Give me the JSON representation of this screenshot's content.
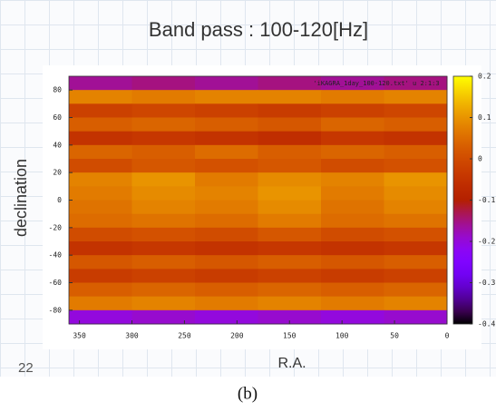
{
  "chart_data": {
    "type": "heatmap",
    "title": "Band pass : 100-120[Hz]",
    "xlabel": "R.A.",
    "ylabel": "declination",
    "key": "'iKAGRA_1day_100-120.txt' u 2:1:3",
    "x": [
      330,
      270,
      210,
      150,
      90,
      30
    ],
    "y": [
      85,
      75,
      65,
      55,
      45,
      35,
      25,
      15,
      5,
      -5,
      -15,
      -25,
      -35,
      -45,
      -55,
      -65,
      -75,
      -85
    ],
    "z": [
      [
        -0.16,
        -0.15,
        -0.16,
        -0.15,
        -0.16,
        -0.15
      ],
      [
        0.08,
        0.07,
        0.08,
        0.08,
        0.07,
        0.08
      ],
      [
        -0.02,
        -0.01,
        -0.02,
        -0.03,
        -0.02,
        -0.01
      ],
      [
        0.03,
        0.04,
        0.03,
        0.02,
        0.04,
        0.03
      ],
      [
        -0.05,
        -0.04,
        -0.05,
        -0.06,
        -0.04,
        -0.05
      ],
      [
        0.04,
        0.03,
        0.05,
        0.03,
        0.04,
        0.03
      ],
      [
        0.0,
        0.02,
        0.01,
        0.02,
        0.0,
        0.01
      ],
      [
        0.08,
        0.1,
        0.07,
        0.09,
        0.08,
        0.1
      ],
      [
        0.07,
        0.09,
        0.08,
        0.1,
        0.07,
        0.09
      ],
      [
        0.06,
        0.08,
        0.07,
        0.09,
        0.06,
        0.08
      ],
      [
        0.05,
        0.06,
        0.05,
        0.07,
        0.05,
        0.06
      ],
      [
        0.0,
        0.01,
        0.0,
        0.02,
        0.0,
        0.01
      ],
      [
        -0.05,
        -0.04,
        -0.05,
        -0.04,
        -0.05,
        -0.04
      ],
      [
        0.02,
        0.03,
        0.02,
        0.03,
        0.02,
        0.03
      ],
      [
        -0.03,
        -0.02,
        -0.03,
        -0.02,
        -0.03,
        -0.02
      ],
      [
        0.03,
        0.04,
        0.03,
        0.04,
        0.03,
        0.04
      ],
      [
        0.07,
        0.08,
        0.07,
        0.08,
        0.07,
        0.08
      ],
      [
        -0.2,
        -0.19,
        -0.2,
        -0.19,
        -0.2,
        -0.19
      ]
    ],
    "xlim": [
      360,
      0
    ],
    "ylim": [
      -90,
      90
    ],
    "xticks": [
      350,
      300,
      250,
      200,
      150,
      100,
      50,
      0
    ],
    "yticks": [
      -80,
      -60,
      -40,
      -20,
      0,
      20,
      40,
      60,
      80
    ],
    "clim": [
      -0.4,
      0.2
    ],
    "cticks": [
      -0.4,
      -0.3,
      -0.2,
      -0.1,
      0,
      0.1,
      0.2
    ]
  },
  "slide_number": "22",
  "caption": "(b)"
}
